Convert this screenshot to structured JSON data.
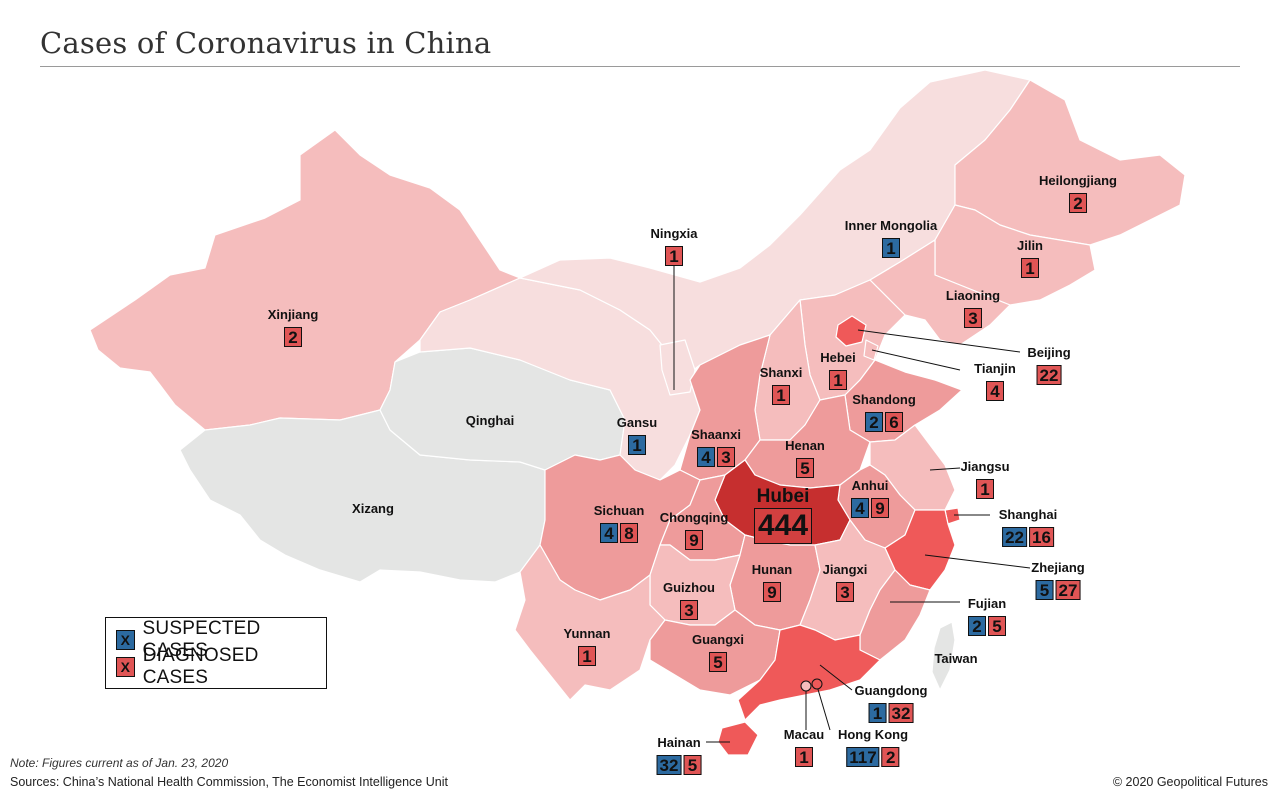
{
  "title": "Cases of Coronavirus in China",
  "legend": {
    "marker": "X",
    "suspected_label": "SUSPECTED CASES",
    "diagnosed_label": "DIAGNOSED CASES",
    "suspected_color": "#2c6aa0",
    "diagnosed_color": "#e05555"
  },
  "colors": {
    "none": "#e4e5e4",
    "lightest": "#f7dede",
    "light": "#f5bdbd",
    "medium": "#ee9b9b",
    "strong": "#ef5959",
    "hubei": "#c62f2f"
  },
  "regions": [
    {
      "name": "Heilongjiang",
      "suspected": null,
      "diagnosed": "2"
    },
    {
      "name": "Inner Mongolia",
      "suspected": "1",
      "diagnosed": null
    },
    {
      "name": "Jilin",
      "suspected": null,
      "diagnosed": "1"
    },
    {
      "name": "Ningxia",
      "suspected": null,
      "diagnosed": "1"
    },
    {
      "name": "Liaoning",
      "suspected": null,
      "diagnosed": "3"
    },
    {
      "name": "Xinjiang",
      "suspected": null,
      "diagnosed": "2"
    },
    {
      "name": "Beijing",
      "suspected": null,
      "diagnosed": "22"
    },
    {
      "name": "Tianjin",
      "suspected": null,
      "diagnosed": "4"
    },
    {
      "name": "Hebei",
      "suspected": null,
      "diagnosed": "1"
    },
    {
      "name": "Shanxi",
      "suspected": null,
      "diagnosed": "1"
    },
    {
      "name": "Shandong",
      "suspected": "2",
      "diagnosed": "6"
    },
    {
      "name": "Qinghai",
      "suspected": null,
      "diagnosed": null
    },
    {
      "name": "Gansu",
      "suspected": "1",
      "diagnosed": null
    },
    {
      "name": "Shaanxi",
      "suspected": "4",
      "diagnosed": "3"
    },
    {
      "name": "Henan",
      "suspected": null,
      "diagnosed": "5"
    },
    {
      "name": "Jiangsu",
      "suspected": null,
      "diagnosed": "1"
    },
    {
      "name": "Anhui",
      "suspected": "4",
      "diagnosed": "9"
    },
    {
      "name": "Xizang",
      "suspected": null,
      "diagnosed": null
    },
    {
      "name": "Sichuan",
      "suspected": "4",
      "diagnosed": "8"
    },
    {
      "name": "Chongqing",
      "suspected": null,
      "diagnosed": "9"
    },
    {
      "name": "Shanghai",
      "suspected": "22",
      "diagnosed": "16"
    },
    {
      "name": "Zhejiang",
      "suspected": "5",
      "diagnosed": "27"
    },
    {
      "name": "Hunan",
      "suspected": null,
      "diagnosed": "9"
    },
    {
      "name": "Jiangxi",
      "suspected": null,
      "diagnosed": "3"
    },
    {
      "name": "Guizhou",
      "suspected": null,
      "diagnosed": "3"
    },
    {
      "name": "Fujian",
      "suspected": "2",
      "diagnosed": "5"
    },
    {
      "name": "Taiwan",
      "suspected": null,
      "diagnosed": null
    },
    {
      "name": "Yunnan",
      "suspected": null,
      "diagnosed": "1"
    },
    {
      "name": "Guangxi",
      "suspected": null,
      "diagnosed": "5"
    },
    {
      "name": "Guangdong",
      "suspected": "1",
      "diagnosed": "32"
    },
    {
      "name": "Hainan",
      "suspected": "32",
      "diagnosed": "5"
    },
    {
      "name": "Macau",
      "suspected": null,
      "diagnosed": "1"
    },
    {
      "name": "Hong Kong",
      "suspected": "117",
      "diagnosed": "2"
    }
  ],
  "hubei": {
    "name": "Hubei",
    "diagnosed": "444"
  },
  "note": "Note: Figures current as of Jan. 23, 2020",
  "sources": "Sources: China’s National Health Commission, The Economist Intelligence Unit",
  "copyright": "© 2020 Geopolitical Futures"
}
